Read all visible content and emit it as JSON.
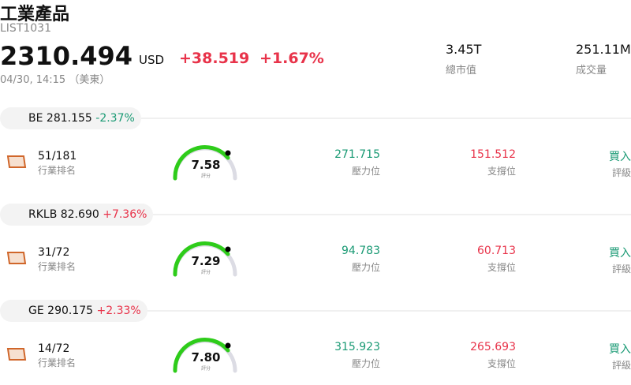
{
  "header": {
    "title": "工業產品",
    "code": "LIST1031",
    "price": 2310.494,
    "currency": "USD",
    "change": "+38.519",
    "change_pct": "+1.67%",
    "time": "04/30, 14:15 （美東）",
    "market_cap": "3.45T",
    "market_cap_label": "總市值",
    "volume": "251.11M",
    "volume_label": "成交量"
  },
  "stocks": [
    {
      "ticker": "BE",
      "price": 281.155,
      "change_pct": "-2.37%",
      "rank": "51/181",
      "rank_label": "行業排名",
      "score": 7.58,
      "score_label": "評分",
      "resistance": 271.715,
      "resistance_label": "壓力位",
      "support": 151.512,
      "support_label": "支撐位",
      "rating": "買入",
      "rating_label": "評級"
    },
    {
      "ticker": "RKLB",
      "price": "82.690",
      "change_pct": "+7.36%",
      "rank": "31/72",
      "rank_label": "行業排名",
      "score": 7.29,
      "score_label": "評分",
      "resistance": 94.783,
      "resistance_label": "壓力位",
      "support": 60.713,
      "support_label": "支撐位",
      "rating": "買入",
      "rating_label": "評級"
    },
    {
      "ticker": "GE",
      "price": 290.175,
      "change_pct": "+2.33%",
      "rank": "14/72",
      "rank_label": "行業排名",
      "score": "7.80",
      "score_label": "評分",
      "resistance": 315.923,
      "resistance_label": "壓力位",
      "support": 265.693,
      "support_label": "支撐位",
      "rating": "買入",
      "rating_label": "評級"
    }
  ]
}
